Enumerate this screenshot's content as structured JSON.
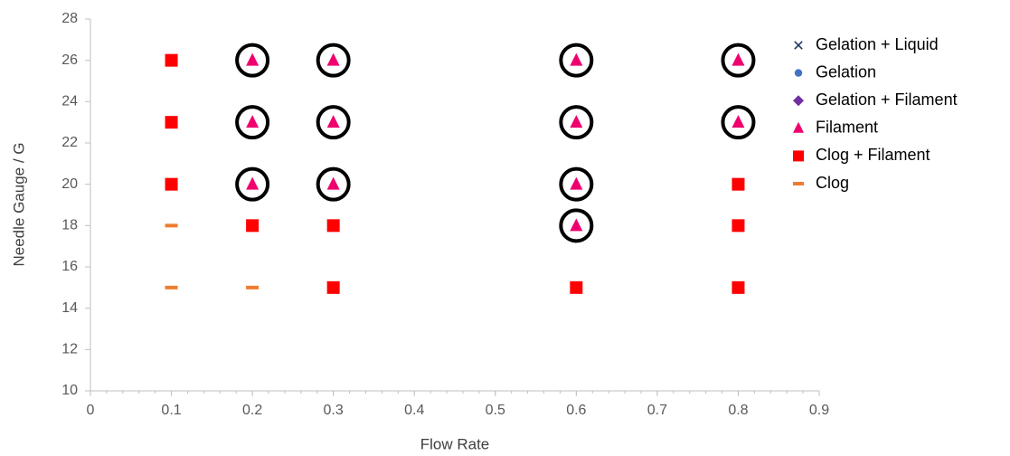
{
  "chart_data": {
    "type": "scatter",
    "x_label": "Flow Rate",
    "y_label": "Needle Gauge / G",
    "xlim": [
      0,
      0.9
    ],
    "xticks": [
      0,
      0.1,
      0.2,
      0.3,
      0.4,
      0.5,
      0.6,
      0.7,
      0.8,
      0.9
    ],
    "ylim": [
      10,
      28
    ],
    "yticks": [
      10,
      12,
      14,
      16,
      18,
      20,
      22,
      24,
      26,
      28
    ],
    "grid": false,
    "legend": "right",
    "series": [
      {
        "name": "Gelation + Liquid",
        "color": "#1f3864",
        "marker": "x",
        "circled": false,
        "x": [],
        "values": []
      },
      {
        "name": "Gelation",
        "color": "#4472c4",
        "marker": "circle",
        "circled": false,
        "x": [],
        "values": []
      },
      {
        "name": "Gelation + Filament",
        "color": "#7030a0",
        "marker": "diamond",
        "circled": false,
        "x": [],
        "values": []
      },
      {
        "name": "Filament",
        "color": "#f0006e",
        "marker": "triangle",
        "circled": true,
        "x": [
          0.2,
          0.2,
          0.2,
          0.3,
          0.3,
          0.3,
          0.6,
          0.6,
          0.6,
          0.6,
          0.8,
          0.8
        ],
        "values": [
          26,
          23,
          20,
          26,
          23,
          20,
          26,
          23,
          20,
          18,
          26,
          23
        ]
      },
      {
        "name": "Clog + Filament",
        "color": "#ff0000",
        "marker": "square",
        "circled": false,
        "x": [
          0.1,
          0.1,
          0.1,
          0.2,
          0.3,
          0.3,
          0.6,
          0.8,
          0.8,
          0.8
        ],
        "values": [
          26,
          23,
          20,
          18,
          18,
          15,
          15,
          20,
          18,
          15
        ]
      },
      {
        "name": "Clog",
        "color": "#ed7d31",
        "marker": "dash",
        "circled": false,
        "x": [
          0.1,
          0.1,
          0.2
        ],
        "values": [
          18,
          15,
          15
        ]
      }
    ]
  }
}
